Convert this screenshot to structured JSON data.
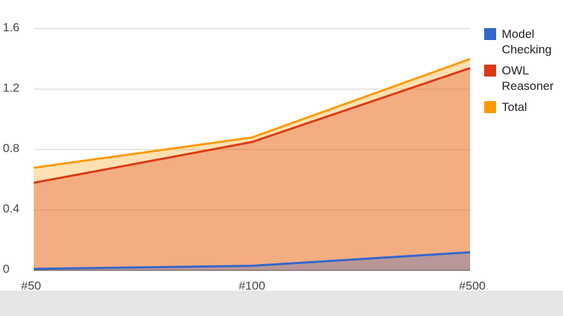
{
  "chart_data": {
    "type": "area",
    "categories": [
      "#50",
      "#100",
      "#500"
    ],
    "series": [
      {
        "name": "Model Checking",
        "color": "#3366cc",
        "values": [
          0.01,
          0.03,
          0.12
        ]
      },
      {
        "name": "OWL Reasoner",
        "color": "#dc3912",
        "values": [
          0.58,
          0.85,
          1.34
        ]
      },
      {
        "name": "Total",
        "color": "#ff9900",
        "values": [
          0.68,
          0.88,
          1.4
        ]
      }
    ],
    "ylim": [
      0,
      1.6
    ],
    "yticks": [
      0,
      0.4,
      0.8,
      1.2,
      1.6
    ],
    "grid": true,
    "legend": "right"
  }
}
